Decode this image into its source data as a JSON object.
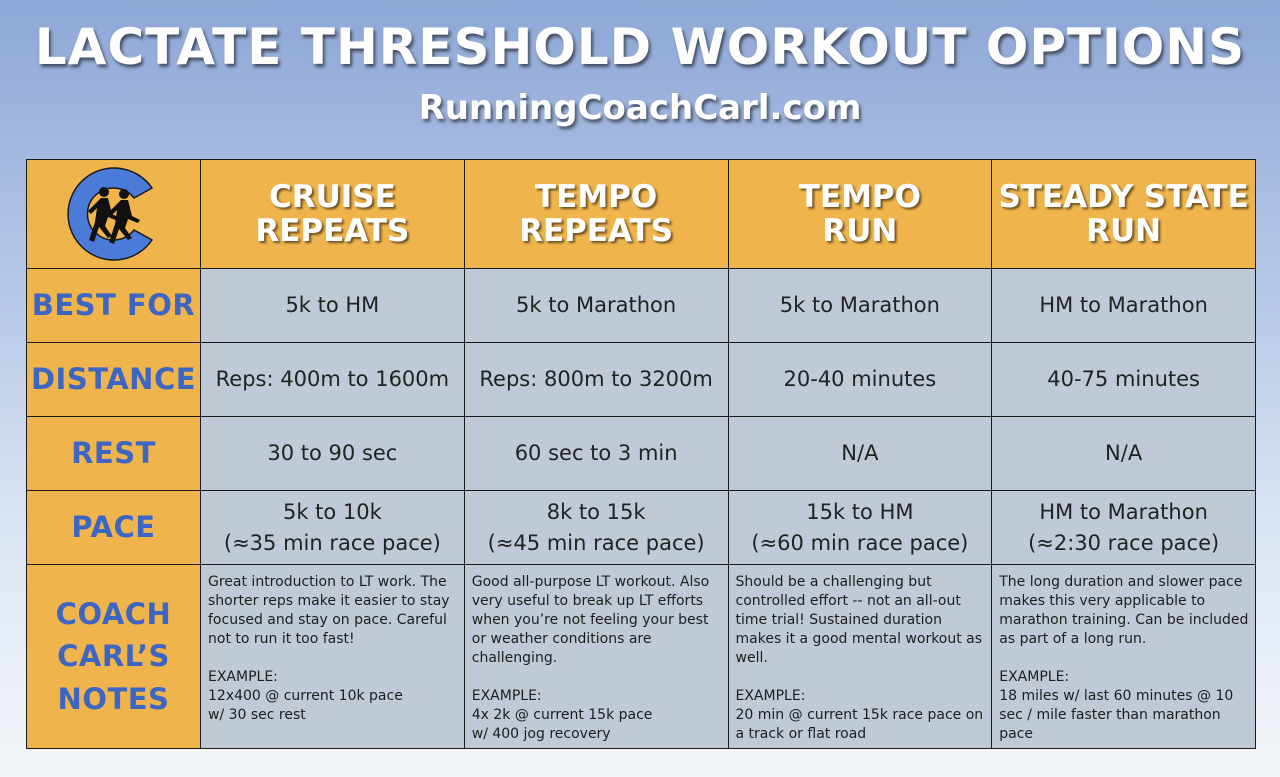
{
  "header": {
    "title": "LACTATE THRESHOLD WORKOUT OPTIONS",
    "site": "RunningCoachCarl.com"
  },
  "colors": {
    "header_bg": "#f0b44c",
    "cell_bg": "#bfcad6",
    "row_label": "#3d66c2",
    "logo_blue": "#4a7bd8"
  },
  "logo": {
    "icon": "runners-c-logo-icon"
  },
  "columns": [
    {
      "line1": "CRUISE",
      "line2": "REPEATS"
    },
    {
      "line1": "TEMPO",
      "line2": "REPEATS"
    },
    {
      "line1": "TEMPO",
      "line2": "RUN"
    },
    {
      "line1": "STEADY STATE",
      "line2": "RUN"
    }
  ],
  "rows": {
    "best_for": {
      "label": "BEST FOR",
      "values": [
        "5k to HM",
        "5k to Marathon",
        "5k to Marathon",
        "HM to Marathon"
      ]
    },
    "distance": {
      "label": "DISTANCE",
      "values": [
        "Reps: 400m to 1600m",
        "Reps: 800m to 3200m",
        "20-40 minutes",
        "40-75 minutes"
      ]
    },
    "rest": {
      "label": "REST",
      "values": [
        "30 to 90 sec",
        "60 sec to 3 min",
        "N/A",
        "N/A"
      ]
    },
    "pace": {
      "label": "PACE",
      "values": [
        {
          "line1": "5k to 10k",
          "line2": "(≈35 min race pace)"
        },
        {
          "line1": "8k to 15k",
          "line2": "(≈45 min race pace)"
        },
        {
          "line1": "15k to HM",
          "line2": "(≈60 min race pace)"
        },
        {
          "line1": "HM to Marathon",
          "line2": "(≈2:30 race pace)"
        }
      ]
    },
    "notes": {
      "label_line1": "COACH",
      "label_line2": "CARL’S",
      "label_line3": "NOTES",
      "values": [
        {
          "text": "Great introduction to LT work. The shorter reps make it easier to stay focused and stay on pace. Careful not to run it too fast!",
          "example_label": "EXAMPLE:",
          "example_line1": "12x400 @ current 10k pace",
          "example_line2": "w/ 30 sec rest"
        },
        {
          "text": "Good all-purpose LT workout. Also very useful to break up LT efforts when you’re not feeling your best or weather conditions are challenging.",
          "example_label": "EXAMPLE:",
          "example_line1": "4x 2k @ current 15k pace",
          "example_line2": "w/ 400 jog recovery"
        },
        {
          "text": "Should be a challenging but controlled effort -- not an all-out time trial!  Sustained duration makes it a good mental workout as well.",
          "example_label": "EXAMPLE:",
          "example_line1": "20 min @ current 15k race pace on",
          "example_line2": "a track or flat road"
        },
        {
          "text": "The long duration and slower pace makes this very applicable to marathon training.  Can be included as part of a long run.",
          "example_label": "EXAMPLE:",
          "example_line1": "18 miles w/ last 60 minutes @ 10",
          "example_line2": "sec / mile faster than marathon pace"
        }
      ]
    }
  }
}
